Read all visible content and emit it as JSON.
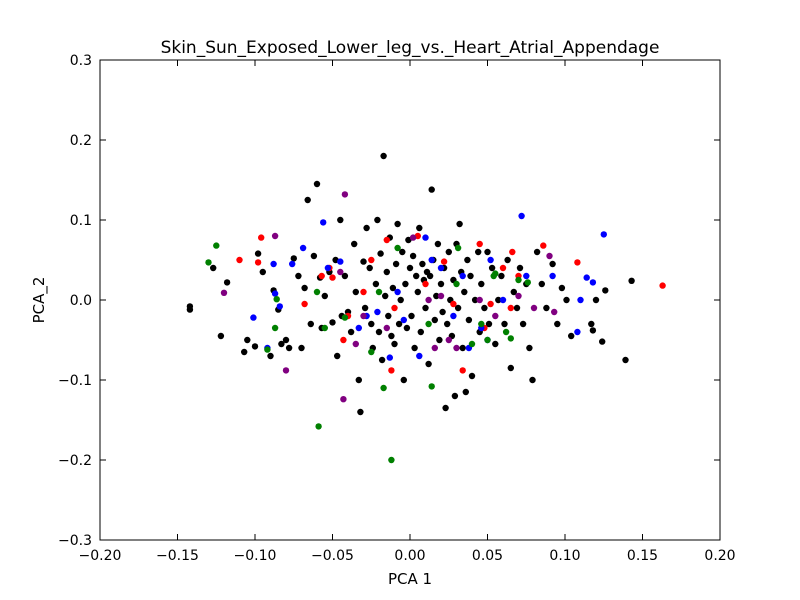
{
  "chart_data": {
    "type": "scatter",
    "title": "Skin_Sun_Exposed_Lower_leg_vs._Heart_Atrial_Appendage",
    "xlabel": "PCA 1",
    "ylabel": "PCA_2",
    "xlim": [
      -0.2,
      0.2
    ],
    "ylim": [
      -0.3,
      0.3
    ],
    "xticks": [
      "−0.20",
      "−0.15",
      "−0.10",
      "−0.05",
      "0.00",
      "0.05",
      "0.10",
      "0.15",
      "0.20"
    ],
    "yticks": [
      "−0.3",
      "−0.2",
      "−0.1",
      "0.0",
      "0.1",
      "0.2",
      "0.3"
    ],
    "grid": false,
    "legend": "none",
    "series": [
      {
        "color": "#000000",
        "points": [
          [
            -0.142,
            -0.012
          ],
          [
            -0.142,
            -0.008
          ],
          [
            -0.127,
            0.04
          ],
          [
            -0.122,
            -0.045
          ],
          [
            -0.118,
            0.022
          ],
          [
            -0.107,
            -0.065
          ],
          [
            -0.105,
            -0.05
          ],
          [
            -0.1,
            -0.058
          ],
          [
            -0.098,
            0.058
          ],
          [
            -0.095,
            0.035
          ],
          [
            -0.09,
            -0.07
          ],
          [
            -0.088,
            0.012
          ],
          [
            -0.085,
            -0.012
          ],
          [
            -0.083,
            -0.055
          ],
          [
            -0.08,
            -0.05
          ],
          [
            -0.078,
            -0.06
          ],
          [
            -0.075,
            0.052
          ],
          [
            -0.072,
            0.03
          ],
          [
            -0.07,
            -0.06
          ],
          [
            -0.068,
            0.015
          ],
          [
            -0.066,
            0.125
          ],
          [
            -0.064,
            -0.03
          ],
          [
            -0.062,
            0.055
          ],
          [
            -0.06,
            0.145
          ],
          [
            -0.058,
            0.028
          ],
          [
            -0.057,
            -0.035
          ],
          [
            -0.055,
            0.005
          ],
          [
            -0.052,
            0.035
          ],
          [
            -0.05,
            -0.028
          ],
          [
            -0.048,
            0.05
          ],
          [
            -0.047,
            -0.07
          ],
          [
            -0.045,
            0.1
          ],
          [
            -0.044,
            -0.02
          ],
          [
            -0.042,
            0.03
          ],
          [
            -0.04,
            -0.015
          ],
          [
            -0.038,
            -0.04
          ],
          [
            -0.036,
            0.07
          ],
          [
            -0.035,
            0.01
          ],
          [
            -0.033,
            -0.1
          ],
          [
            -0.032,
            -0.14
          ],
          [
            -0.03,
            0.048
          ],
          [
            -0.029,
            -0.01
          ],
          [
            -0.028,
            0.09
          ],
          [
            -0.026,
            0.04
          ],
          [
            -0.025,
            -0.03
          ],
          [
            -0.024,
            -0.06
          ],
          [
            -0.022,
            0.02
          ],
          [
            -0.021,
            0.1
          ],
          [
            -0.02,
            -0.04
          ],
          [
            -0.019,
            0.058
          ],
          [
            -0.018,
            -0.075
          ],
          [
            -0.017,
            0.18
          ],
          [
            -0.016,
            0.005
          ],
          [
            -0.015,
            0.035
          ],
          [
            -0.014,
            -0.02
          ],
          [
            -0.013,
            0.078
          ],
          [
            -0.012,
            -0.045
          ],
          [
            -0.011,
            0.015
          ],
          [
            -0.01,
            -0.055
          ],
          [
            -0.009,
            0.045
          ],
          [
            -0.008,
            0.095
          ],
          [
            -0.007,
            -0.03
          ],
          [
            -0.006,
            0.0
          ],
          [
            -0.005,
            0.06
          ],
          [
            -0.004,
            -0.1
          ],
          [
            -0.003,
            0.02
          ],
          [
            -0.002,
            -0.035
          ],
          [
            -0.001,
            0.075
          ],
          [
            0.0,
            0.04
          ],
          [
            0.001,
            -0.02
          ],
          [
            0.002,
            0.055
          ],
          [
            0.003,
            -0.06
          ],
          [
            0.004,
            0.03
          ],
          [
            0.005,
            0.01
          ],
          [
            0.006,
            0.09
          ],
          [
            0.007,
            -0.04
          ],
          [
            0.008,
            0.045
          ],
          [
            0.009,
            0.025
          ],
          [
            0.01,
            -0.01
          ],
          [
            0.011,
            0.035
          ],
          [
            0.012,
            -0.08
          ],
          [
            0.013,
            0.03
          ],
          [
            0.014,
            0.138
          ],
          [
            0.015,
            0.05
          ],
          [
            0.016,
            -0.025
          ],
          [
            0.017,
            0.005
          ],
          [
            0.018,
            0.07
          ],
          [
            0.019,
            -0.05
          ],
          [
            0.02,
            0.02
          ],
          [
            0.021,
            -0.015
          ],
          [
            0.022,
            0.04
          ],
          [
            0.023,
            -0.135
          ],
          [
            0.024,
            -0.03
          ],
          [
            0.025,
            0.06
          ],
          [
            0.026,
            0.0
          ],
          [
            0.027,
            -0.045
          ],
          [
            0.028,
            0.025
          ],
          [
            0.029,
            -0.12
          ],
          [
            0.03,
            0.07
          ],
          [
            0.031,
            -0.01
          ],
          [
            0.032,
            0.095
          ],
          [
            0.033,
            0.035
          ],
          [
            0.034,
            -0.06
          ],
          [
            0.035,
            0.01
          ],
          [
            0.036,
            -0.115
          ],
          [
            0.037,
            0.05
          ],
          [
            0.038,
            -0.025
          ],
          [
            0.039,
            0.03
          ],
          [
            0.04,
            -0.095
          ],
          [
            0.042,
            0.0
          ],
          [
            0.044,
            0.06
          ],
          [
            0.045,
            -0.04
          ],
          [
            0.046,
            0.02
          ],
          [
            0.048,
            -0.01
          ],
          [
            0.05,
            0.06
          ],
          [
            0.051,
            -0.03
          ],
          [
            0.053,
            0.04
          ],
          [
            0.055,
            -0.055
          ],
          [
            0.057,
            0.0
          ],
          [
            0.059,
            0.03
          ],
          [
            0.061,
            -0.03
          ],
          [
            0.063,
            0.05
          ],
          [
            0.065,
            -0.085
          ],
          [
            0.067,
            0.01
          ],
          [
            0.069,
            -0.01
          ],
          [
            0.071,
            0.04
          ],
          [
            0.073,
            -0.03
          ],
          [
            0.075,
            0.02
          ],
          [
            0.077,
            -0.06
          ],
          [
            0.079,
            -0.1
          ],
          [
            0.082,
            0.06
          ],
          [
            0.085,
            0.02
          ],
          [
            0.088,
            -0.01
          ],
          [
            0.092,
            0.045
          ],
          [
            0.095,
            -0.03
          ],
          [
            0.098,
            0.015
          ],
          [
            0.101,
            0.0
          ],
          [
            0.104,
            -0.045
          ],
          [
            0.117,
            -0.03
          ],
          [
            0.118,
            -0.038
          ],
          [
            0.12,
            0.0
          ],
          [
            0.124,
            -0.052
          ],
          [
            0.126,
            0.012
          ],
          [
            0.139,
            -0.075
          ],
          [
            0.143,
            0.024
          ]
        ]
      },
      {
        "color": "#ff0000",
        "points": [
          [
            -0.11,
            0.05
          ],
          [
            -0.096,
            0.078
          ],
          [
            -0.098,
            0.047
          ],
          [
            -0.068,
            -0.005
          ],
          [
            -0.057,
            0.03
          ],
          [
            -0.052,
            0.04
          ],
          [
            -0.05,
            0.028
          ],
          [
            -0.043,
            -0.05
          ],
          [
            -0.04,
            -0.02
          ],
          [
            -0.03,
            0.01
          ],
          [
            -0.025,
            0.05
          ],
          [
            -0.015,
            0.075
          ],
          [
            -0.01,
            -0.01
          ],
          [
            -0.012,
            -0.088
          ],
          [
            0.005,
            0.08
          ],
          [
            0.01,
            0.02
          ],
          [
            0.022,
            0.048
          ],
          [
            0.028,
            -0.005
          ],
          [
            0.034,
            -0.088
          ],
          [
            0.045,
            0.07
          ],
          [
            0.048,
            -0.035
          ],
          [
            0.052,
            -0.005
          ],
          [
            0.06,
            0.04
          ],
          [
            0.066,
            0.06
          ],
          [
            0.07,
            0.03
          ],
          [
            0.065,
            -0.01
          ],
          [
            0.086,
            0.068
          ],
          [
            0.108,
            0.047
          ],
          [
            0.163,
            0.018
          ]
        ]
      },
      {
        "color": "#0000ff",
        "points": [
          [
            -0.101,
            -0.022
          ],
          [
            -0.092,
            -0.06
          ],
          [
            -0.088,
            0.045
          ],
          [
            -0.087,
            0.008
          ],
          [
            -0.084,
            -0.008
          ],
          [
            -0.076,
            0.045
          ],
          [
            -0.069,
            0.065
          ],
          [
            -0.056,
            0.097
          ],
          [
            -0.053,
            0.04
          ],
          [
            -0.045,
            0.048
          ],
          [
            -0.033,
            -0.035
          ],
          [
            -0.028,
            -0.02
          ],
          [
            -0.021,
            -0.015
          ],
          [
            -0.013,
            -0.072
          ],
          [
            -0.008,
            0.01
          ],
          [
            -0.004,
            -0.025
          ],
          [
            0.006,
            -0.07
          ],
          [
            0.01,
            0.078
          ],
          [
            0.014,
            0.05
          ],
          [
            0.02,
            0.04
          ],
          [
            0.028,
            -0.02
          ],
          [
            0.034,
            0.03
          ],
          [
            0.038,
            -0.06
          ],
          [
            0.046,
            -0.035
          ],
          [
            0.052,
            0.05
          ],
          [
            0.06,
            0.0
          ],
          [
            0.072,
            0.105
          ],
          [
            0.075,
            0.03
          ],
          [
            0.092,
            0.03
          ],
          [
            0.11,
            0.0
          ],
          [
            0.114,
            0.028
          ],
          [
            0.118,
            0.022
          ],
          [
            0.125,
            0.082
          ],
          [
            0.108,
            -0.04
          ],
          [
            0.05,
            -0.05
          ]
        ]
      },
      {
        "color": "#008000",
        "points": [
          [
            -0.13,
            0.047
          ],
          [
            -0.125,
            0.068
          ],
          [
            -0.092,
            -0.062
          ],
          [
            -0.087,
            -0.035
          ],
          [
            -0.086,
            0.001
          ],
          [
            -0.059,
            -0.158
          ],
          [
            -0.06,
            0.01
          ],
          [
            -0.055,
            -0.035
          ],
          [
            -0.042,
            -0.022
          ],
          [
            -0.025,
            -0.065
          ],
          [
            -0.02,
            0.01
          ],
          [
            -0.017,
            -0.11
          ],
          [
            -0.012,
            -0.2
          ],
          [
            -0.008,
            0.065
          ],
          [
            0.012,
            -0.03
          ],
          [
            0.014,
            -0.108
          ],
          [
            0.03,
            0.02
          ],
          [
            0.031,
            0.065
          ],
          [
            0.04,
            -0.055
          ],
          [
            0.046,
            -0.03
          ],
          [
            0.05,
            -0.05
          ],
          [
            0.054,
            0.03
          ],
          [
            0.065,
            -0.048
          ],
          [
            0.07,
            0.025
          ],
          [
            0.076,
            0.022
          ],
          [
            0.055,
            0.033
          ],
          [
            0.062,
            -0.04
          ]
        ]
      },
      {
        "color": "#800080",
        "points": [
          [
            -0.12,
            0.009
          ],
          [
            -0.087,
            0.08
          ],
          [
            -0.08,
            -0.088
          ],
          [
            -0.045,
            0.035
          ],
          [
            -0.042,
            0.132
          ],
          [
            -0.043,
            -0.124
          ],
          [
            -0.035,
            -0.055
          ],
          [
            -0.03,
            -0.02
          ],
          [
            -0.015,
            -0.035
          ],
          [
            0.002,
            0.078
          ],
          [
            0.016,
            -0.06
          ],
          [
            0.012,
            0.0
          ],
          [
            0.02,
            0.005
          ],
          [
            0.025,
            -0.05
          ],
          [
            0.03,
            -0.06
          ],
          [
            0.045,
            0.0
          ],
          [
            0.055,
            -0.02
          ],
          [
            0.07,
            0.005
          ],
          [
            0.08,
            -0.01
          ],
          [
            0.09,
            0.055
          ],
          [
            0.093,
            -0.015
          ]
        ]
      }
    ]
  }
}
